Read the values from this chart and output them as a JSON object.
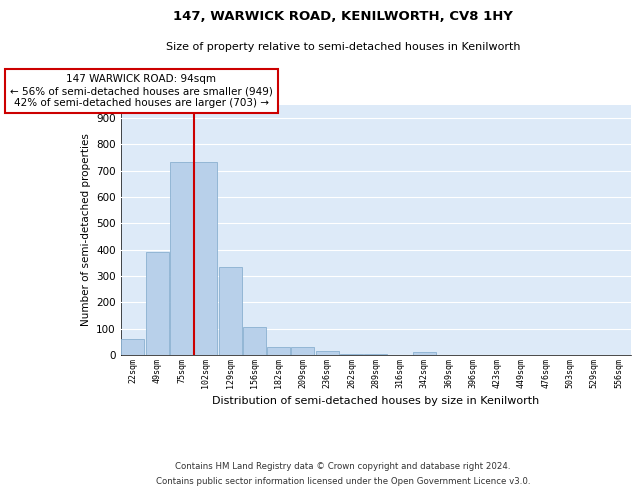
{
  "title1": "147, WARWICK ROAD, KENILWORTH, CV8 1HY",
  "title2": "Size of property relative to semi-detached houses in Kenilworth",
  "xlabel": "Distribution of semi-detached houses by size in Kenilworth",
  "ylabel": "Number of semi-detached properties",
  "categories": [
    "22sqm",
    "49sqm",
    "75sqm",
    "102sqm",
    "129sqm",
    "156sqm",
    "182sqm",
    "209sqm",
    "236sqm",
    "262sqm",
    "289sqm",
    "316sqm",
    "342sqm",
    "369sqm",
    "396sqm",
    "423sqm",
    "449sqm",
    "476sqm",
    "503sqm",
    "529sqm",
    "556sqm"
  ],
  "values": [
    60,
    390,
    735,
    735,
    335,
    105,
    30,
    30,
    15,
    5,
    5,
    0,
    10,
    0,
    0,
    0,
    0,
    0,
    0,
    0,
    0
  ],
  "bar_color": "#b8d0ea",
  "bar_edge_color": "#8ab0d0",
  "bg_color": "#ddeaf8",
  "grid_color": "#ffffff",
  "red_line_index": 2.5,
  "annotation_text": "147 WARWICK ROAD: 94sqm\n← 56% of semi-detached houses are smaller (949)\n42% of semi-detached houses are larger (703) →",
  "annotation_box_color": "#ffffff",
  "annotation_box_edge": "#cc0000",
  "ylim": [
    0,
    950
  ],
  "yticks": [
    0,
    100,
    200,
    300,
    400,
    500,
    600,
    700,
    800,
    900
  ],
  "footer1": "Contains HM Land Registry data © Crown copyright and database right 2024.",
  "footer2": "Contains public sector information licensed under the Open Government Licence v3.0."
}
